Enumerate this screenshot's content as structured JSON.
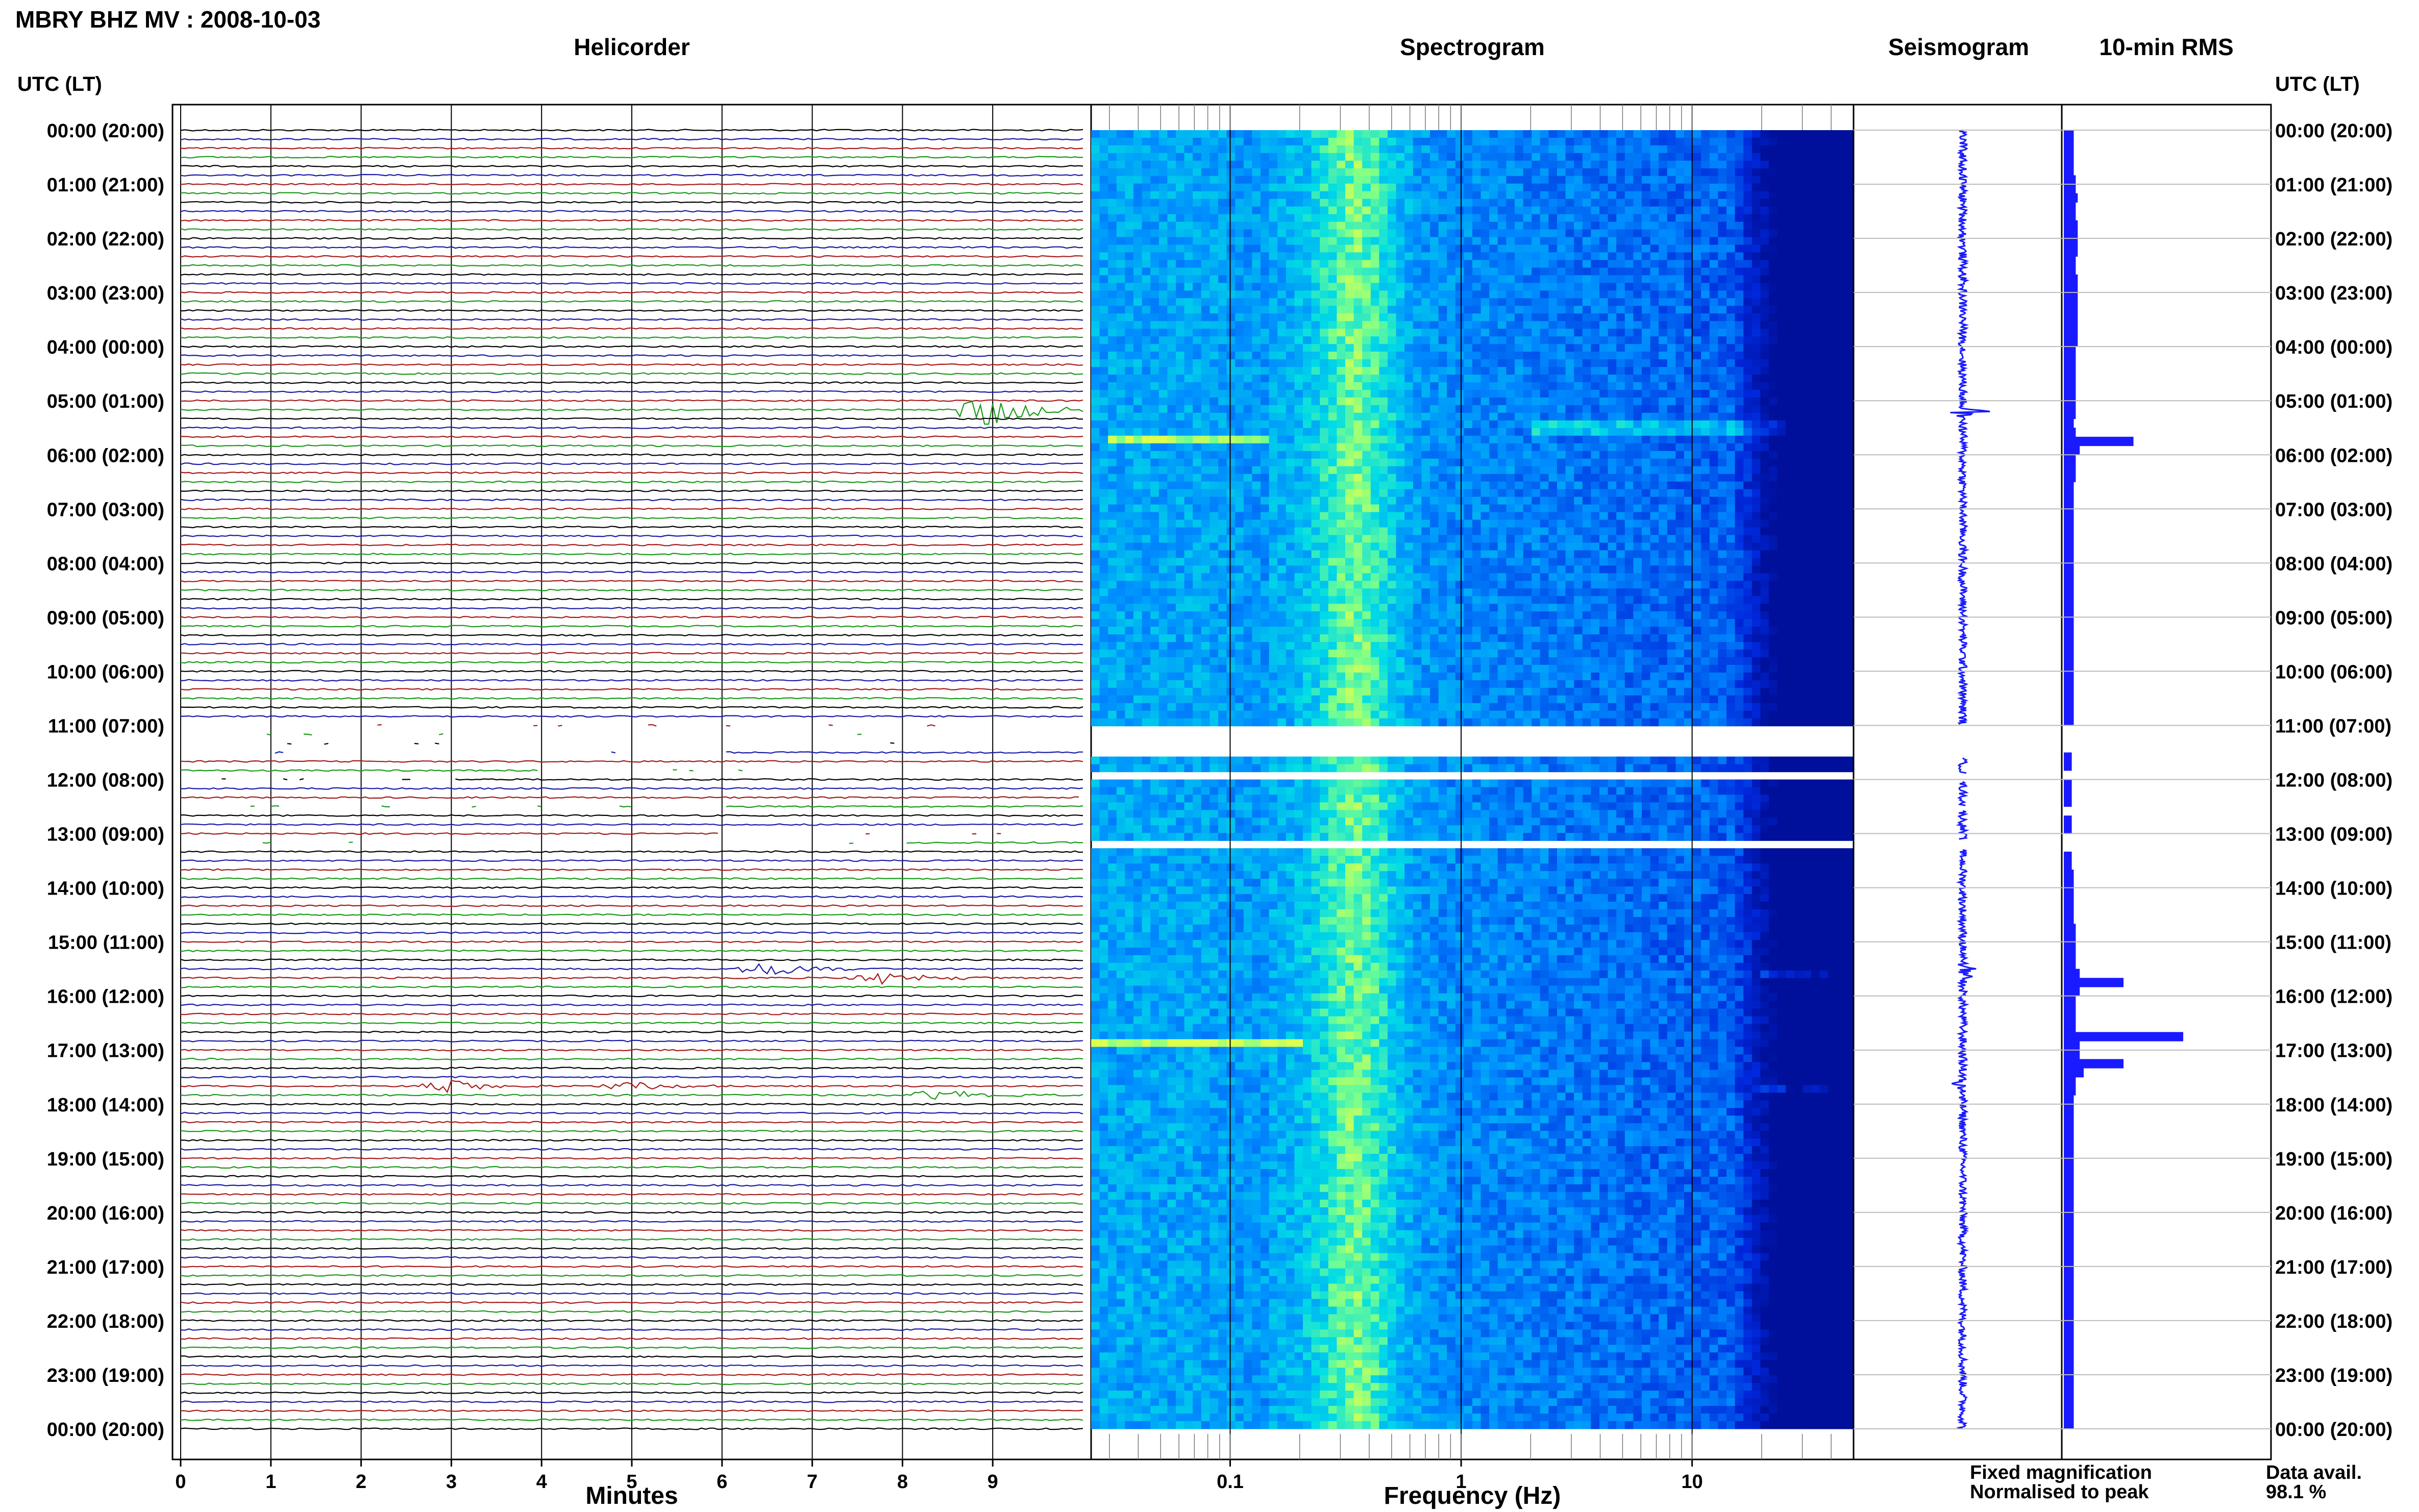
{
  "header": {
    "station_title": "MBRY BHZ MV : 2008-10-03"
  },
  "panels": {
    "helicorder": "Helicorder",
    "spectrogram": "Spectrogram",
    "seismogram": "Seismogram",
    "rms": "10-min RMS"
  },
  "axes": {
    "time_label_left": "UTC (LT)",
    "time_label_right": "UTC (LT)",
    "minutes_label": "Minutes",
    "frequency_label": "Frequency (Hz)"
  },
  "legend": {
    "fixed": "Fixed magnification",
    "fixed_color": "#1a1aff",
    "normalised": "Normalised to peak",
    "normalised_color": "#ff1a1a"
  },
  "data_availability": {
    "label": "Data avail.",
    "value": "98.1 %"
  },
  "colors": {
    "trace_colors": [
      "#000000",
      "#1a1aa8",
      "#a81a1a",
      "#1a9a1a"
    ],
    "rms_fill": "#1a1aff",
    "seismogram": "#1a1aff",
    "spectrogram_low": "#00109a",
    "spectrogram_high": "#b0ff60"
  },
  "chart_data": {
    "type": "heatmap",
    "time_ticks": [
      "00:00 (20:00)",
      "01:00 (21:00)",
      "02:00 (22:00)",
      "03:00 (23:00)",
      "04:00 (00:00)",
      "05:00 (01:00)",
      "06:00 (02:00)",
      "07:00 (03:00)",
      "08:00 (04:00)",
      "09:00 (05:00)",
      "10:00 (06:00)",
      "11:00 (07:00)",
      "12:00 (08:00)",
      "13:00 (09:00)",
      "14:00 (10:00)",
      "15:00 (11:00)",
      "16:00 (12:00)",
      "17:00 (13:00)",
      "18:00 (14:00)",
      "19:00 (15:00)",
      "20:00 (16:00)",
      "21:00 (17:00)",
      "22:00 (18:00)",
      "23:00 (19:00)",
      "00:00 (20:00)"
    ],
    "minute_ticks": [
      "0",
      "1",
      "2",
      "3",
      "4",
      "5",
      "6",
      "7",
      "8",
      "9"
    ],
    "minute_range": [
      0,
      10
    ],
    "frequency_ticks": [
      "0.1",
      "1",
      "10"
    ],
    "frequency_range_hz": [
      0.025,
      50
    ],
    "frequency_scale": "log",
    "helicorder_rows_per_hour": 6,
    "data_gaps_utc_hours": [
      [
        11.0,
        11.6
      ],
      [
        11.9,
        12.05
      ],
      [
        12.5,
        12.6
      ],
      [
        13.1,
        13.3
      ]
    ],
    "helicorder_events": [
      {
        "utc_hour": 5.2,
        "minute": 9.0,
        "amplitude": 1.0
      },
      {
        "utc_hour": 15.5,
        "minute": 6.5,
        "amplitude": 0.45
      },
      {
        "utc_hour": 15.65,
        "minute": 7.8,
        "amplitude": 0.4
      },
      {
        "utc_hour": 17.65,
        "minute": 3.0,
        "amplitude": 0.35
      },
      {
        "utc_hour": 17.65,
        "minute": 5.0,
        "amplitude": 0.25
      },
      {
        "utc_hour": 17.85,
        "minute": 8.5,
        "amplitude": 0.35
      }
    ],
    "spectrogram_features": [
      {
        "utc_hour": 5.7,
        "freq_hz": [
          0.03,
          0.15
        ],
        "strength": 0.8
      },
      {
        "utc_hour": 5.5,
        "freq_hz": [
          2,
          30
        ],
        "strength": 0.45
      },
      {
        "utc_hour": 16.9,
        "freq_hz": [
          0.025,
          0.2
        ],
        "strength": 0.9
      },
      {
        "utc_hour": 15.6,
        "freq_hz": [
          20,
          40
        ],
        "strength": 0.6
      },
      {
        "utc_hour": 17.7,
        "freq_hz": [
          20,
          40
        ],
        "strength": 0.6
      }
    ],
    "rms_10min": [
      0.05,
      0.05,
      0.05,
      0.05,
      0.05,
      0.06,
      0.06,
      0.07,
      0.06,
      0.06,
      0.07,
      0.07,
      0.07,
      0.07,
      0.06,
      0.06,
      0.07,
      0.07,
      0.07,
      0.07,
      0.07,
      0.07,
      0.07,
      0.07,
      0.06,
      0.06,
      0.06,
      0.06,
      0.06,
      0.06,
      0.06,
      0.06,
      0.05,
      0.06,
      0.35,
      0.08,
      0.06,
      0.06,
      0.06,
      0.05,
      0.05,
      0.05,
      0.05,
      0.05,
      0.05,
      0.05,
      0.05,
      0.05,
      0.05,
      0.05,
      0.05,
      0.05,
      0.05,
      0.05,
      0.05,
      0.05,
      0.05,
      0.05,
      0.05,
      0.05,
      0.05,
      0.05,
      0.05,
      0.05,
      0.05,
      0.05,
      0.0,
      0.0,
      0.0,
      0.04,
      0.04,
      0.0,
      0.04,
      0.04,
      0.04,
      0.0,
      0.04,
      0.04,
      0.0,
      0.0,
      0.04,
      0.04,
      0.05,
      0.05,
      0.05,
      0.05,
      0.05,
      0.05,
      0.06,
      0.06,
      0.06,
      0.06,
      0.06,
      0.08,
      0.3,
      0.08,
      0.06,
      0.06,
      0.06,
      0.06,
      0.6,
      0.08,
      0.08,
      0.3,
      0.1,
      0.06,
      0.06,
      0.05,
      0.05,
      0.05,
      0.05,
      0.05,
      0.05,
      0.05,
      0.05,
      0.05,
      0.05,
      0.05,
      0.05,
      0.05,
      0.05,
      0.05,
      0.05,
      0.05,
      0.05,
      0.05,
      0.05,
      0.05,
      0.05,
      0.05,
      0.05,
      0.05,
      0.05,
      0.05,
      0.05,
      0.05,
      0.05,
      0.05,
      0.05,
      0.05,
      0.05,
      0.05,
      0.05,
      0.05
    ]
  }
}
